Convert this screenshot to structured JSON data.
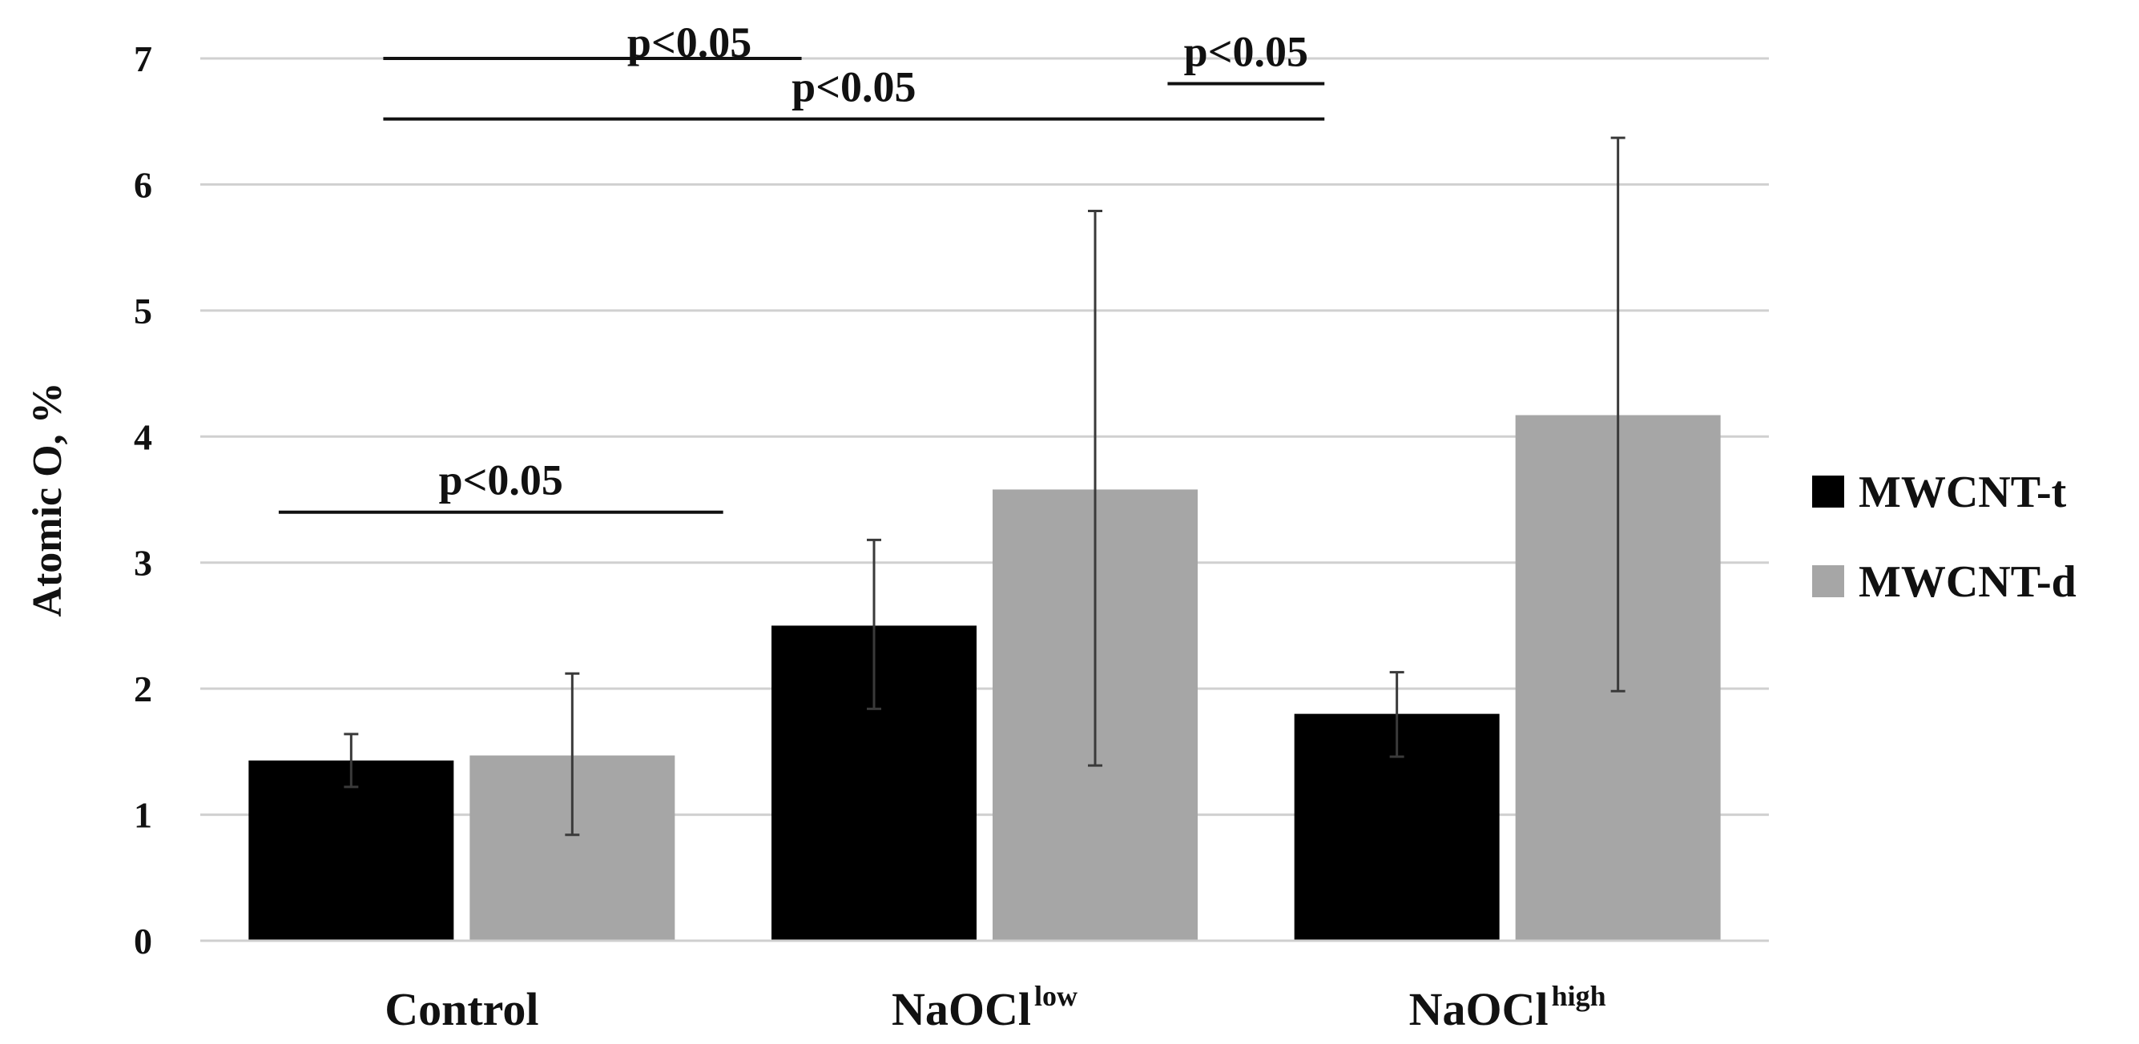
{
  "chart_data": {
    "type": "bar",
    "title": "",
    "xlabel": "",
    "ylabel": "Atomic O, %",
    "ylim": [
      0,
      7
    ],
    "yticks": [
      "0",
      "1",
      "2",
      "3",
      "4",
      "5",
      "6",
      "7"
    ],
    "grid": true,
    "categories": [
      {
        "base": "Control",
        "sup": ""
      },
      {
        "base": "NaOCl",
        "sup": "low"
      },
      {
        "base": "NaOCl",
        "sup": "high"
      }
    ],
    "series": [
      {
        "name": "MWCNT-t",
        "color": "#000000",
        "values": [
          1.43,
          2.5,
          1.8
        ],
        "error_low": [
          1.22,
          1.84,
          1.46
        ],
        "error_high": [
          1.64,
          3.18,
          2.13
        ]
      },
      {
        "name": "MWCNT-d",
        "color": "#a6a6a6",
        "values": [
          1.47,
          3.58,
          4.17
        ],
        "error_low": [
          0.84,
          1.39,
          1.98
        ],
        "error_high": [
          2.12,
          5.79,
          6.37
        ]
      }
    ],
    "legend_position": "right",
    "annotations": [
      {
        "text": "p<0.05",
        "from_category": 0.15,
        "to_category": 1.0,
        "line_y": 3.4,
        "label_anchor": "center"
      },
      {
        "text": "p<0.05",
        "from_category": 0.35,
        "to_category": 1.15,
        "line_y": 7.0,
        "label_anchor": "end-overlap"
      },
      {
        "text": "p<0.05",
        "from_category": 0.35,
        "to_category": 2.15,
        "line_y": 6.52,
        "label_anchor": "center"
      },
      {
        "text": "p<0.05",
        "from_category": 1.85,
        "to_category": 2.15,
        "line_y": 6.8,
        "label_anchor": "center"
      }
    ]
  }
}
